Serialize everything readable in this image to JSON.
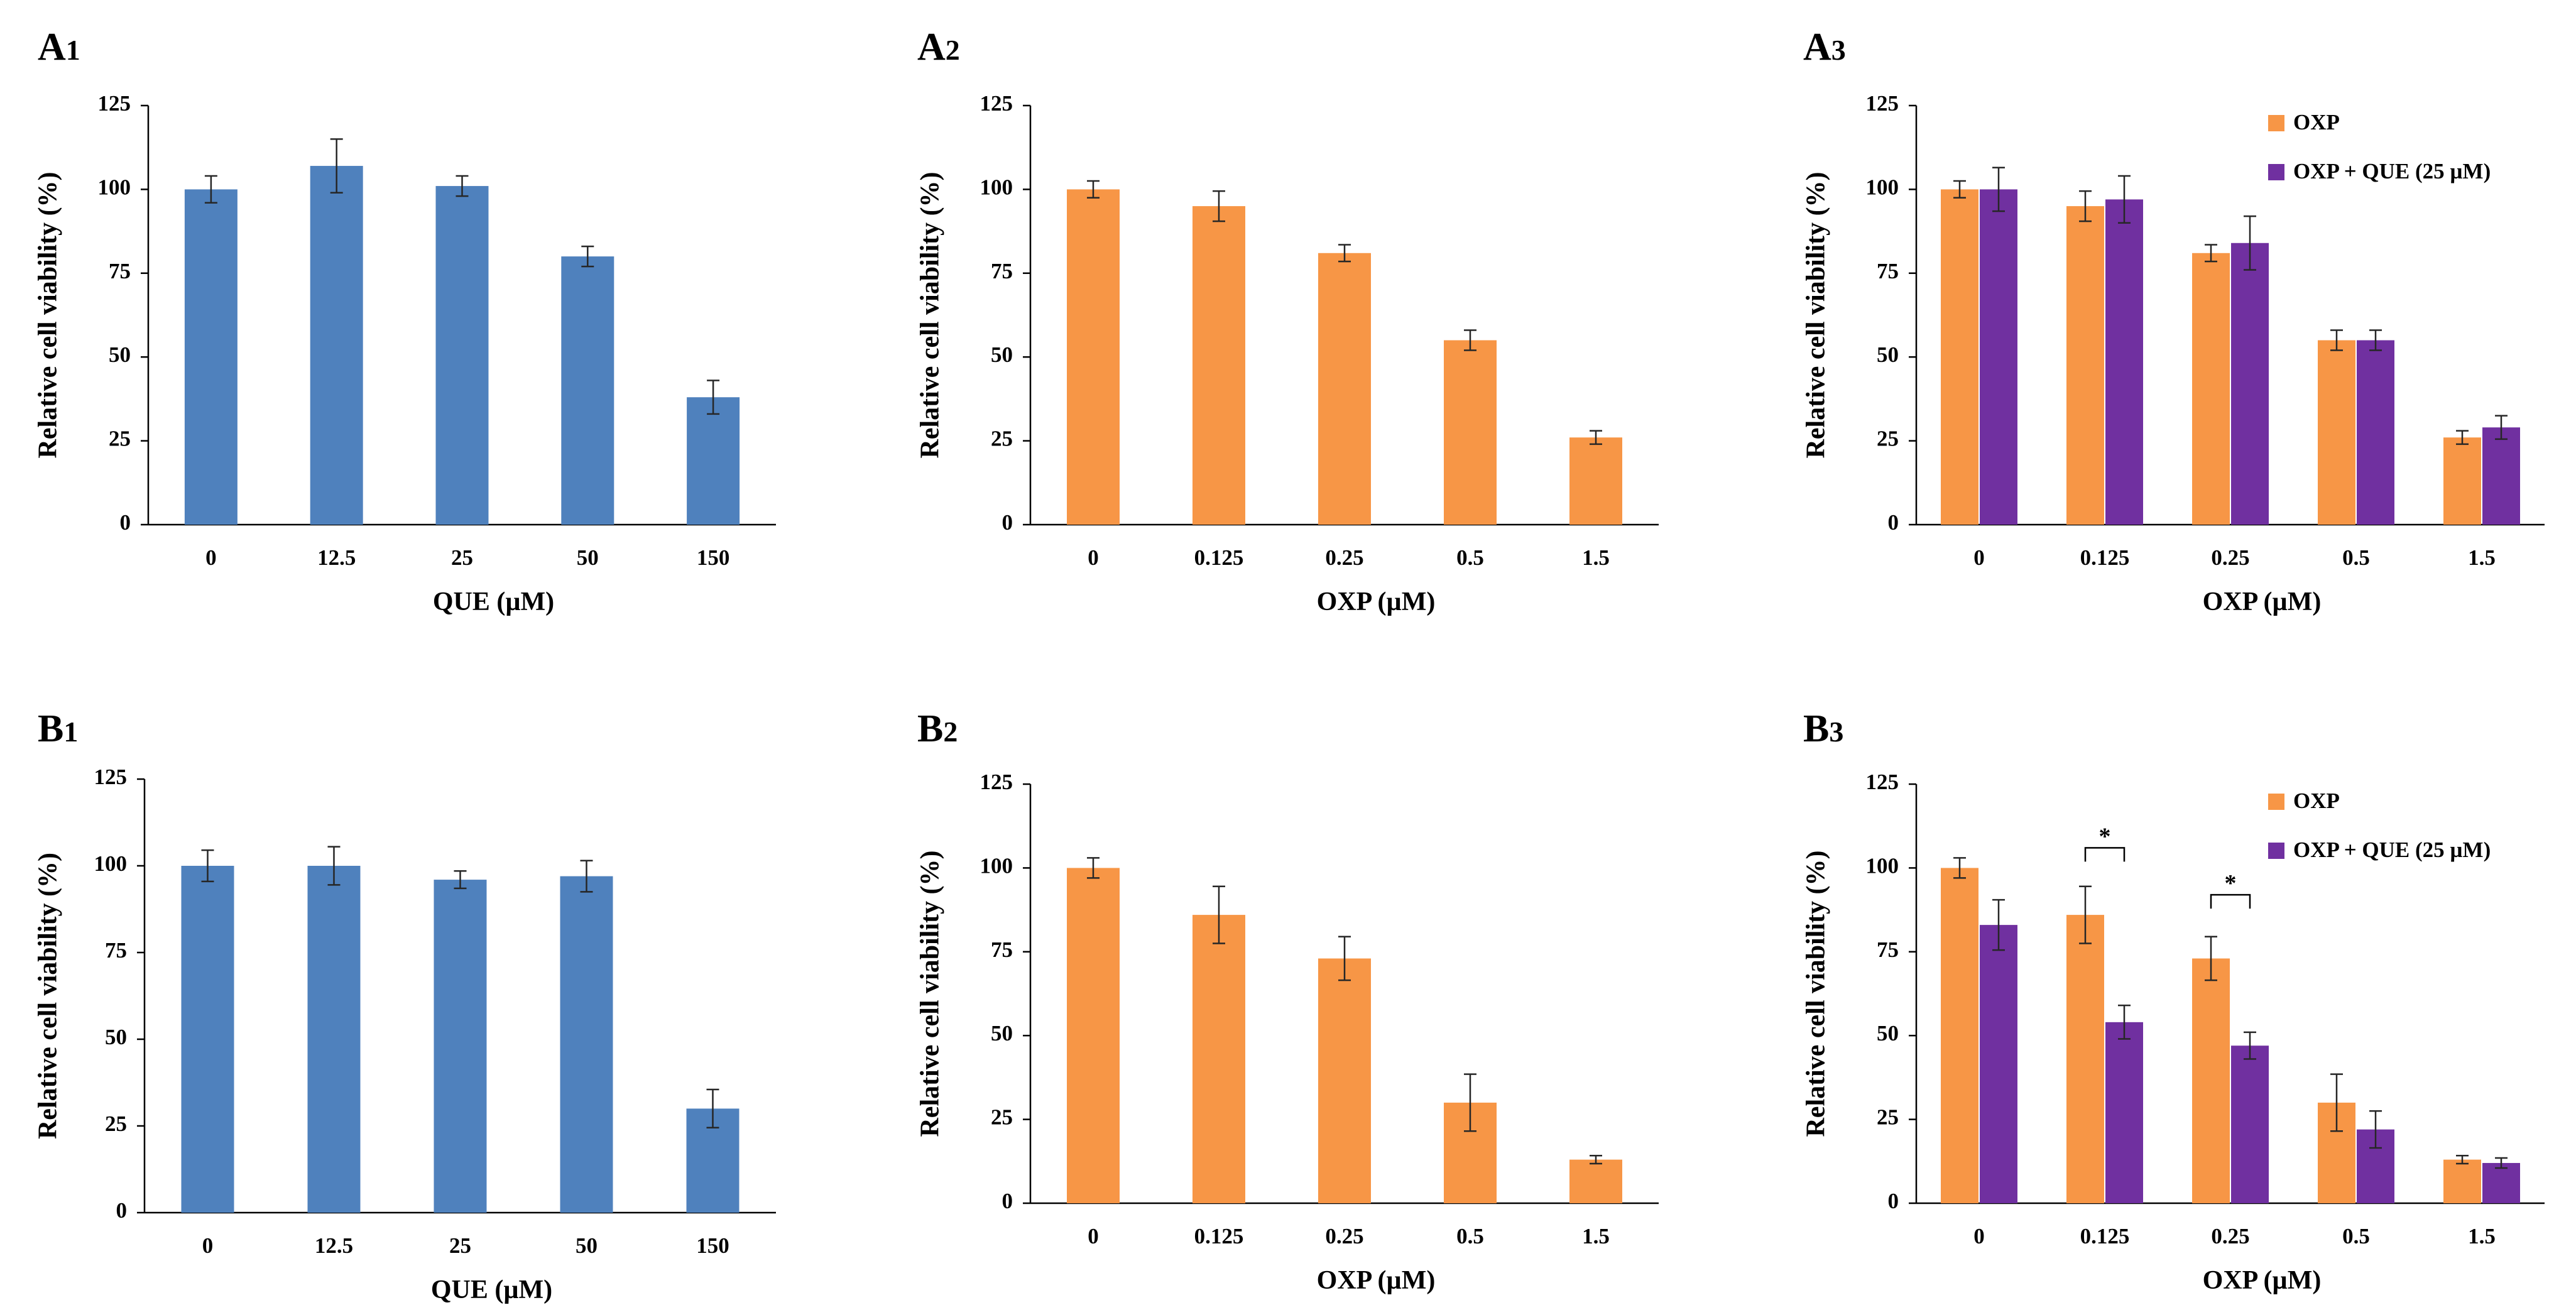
{
  "figure": {
    "panel_count": 6
  },
  "colors": {
    "blue": "#4f81bd",
    "orange": "#f79646",
    "purple": "#7030a0",
    "axis": "#000000",
    "errorbar": "#262626"
  },
  "chart_data": [
    {
      "id": "A1",
      "panel_letter": "A",
      "panel_number": "1",
      "type": "bar",
      "title": "",
      "xlabel": "QUE (µM)",
      "ylabel": "Relative cell viability (%)",
      "ylim": [
        0,
        125
      ],
      "yticks": [
        "0",
        "25",
        "50",
        "75",
        "100",
        "125"
      ],
      "categories": [
        "0",
        "12.5",
        "25",
        "50",
        "150"
      ],
      "series": [
        {
          "name": "QUE",
          "color": "#4f81bd",
          "values": [
            100,
            107,
            101,
            80,
            38
          ],
          "errors": [
            4,
            8,
            3,
            3,
            5
          ]
        }
      ],
      "legend": null,
      "significance": []
    },
    {
      "id": "A2",
      "panel_letter": "A",
      "panel_number": "2",
      "type": "bar",
      "title": "",
      "xlabel": "OXP (µM)",
      "ylabel": "Relative cell viability (%)",
      "ylim": [
        0,
        125
      ],
      "yticks": [
        "0",
        "25",
        "50",
        "75",
        "100",
        "125"
      ],
      "categories": [
        "0",
        "0.125",
        "0.25",
        "0.5",
        "1.5"
      ],
      "series": [
        {
          "name": "OXP",
          "color": "#f79646",
          "values": [
            100,
            95,
            81,
            55,
            26
          ],
          "errors": [
            2.5,
            4.5,
            2.5,
            3,
            2
          ]
        }
      ],
      "legend": null,
      "significance": []
    },
    {
      "id": "A3",
      "panel_letter": "A",
      "panel_number": "3",
      "type": "bar",
      "title": "",
      "xlabel": "OXP (µM)",
      "ylabel": "Relative cell viability (%)",
      "ylim": [
        0,
        125
      ],
      "yticks": [
        "0",
        "25",
        "50",
        "75",
        "100",
        "125"
      ],
      "categories": [
        "0",
        "0.125",
        "0.25",
        "0.5",
        "1.5"
      ],
      "series": [
        {
          "name": "OXP",
          "color": "#f79646",
          "values": [
            100,
            95,
            81,
            55,
            26
          ],
          "errors": [
            2.5,
            4.5,
            2.5,
            3,
            2
          ]
        },
        {
          "name": "OXP + QUE (25 µM)",
          "color": "#7030a0",
          "values": [
            100,
            97,
            84,
            55,
            29
          ],
          "errors": [
            6.5,
            7,
            8,
            3,
            3.5
          ]
        }
      ],
      "legend": [
        "OXP",
        "OXP + QUE (25 µM)"
      ],
      "legend_position": "top-right",
      "significance": []
    },
    {
      "id": "B1",
      "panel_letter": "B",
      "panel_number": "1",
      "type": "bar",
      "title": "",
      "xlabel": "QUE (µM)",
      "ylabel": "Relative cell viability (%)",
      "ylim": [
        0,
        125
      ],
      "yticks": [
        "0",
        "25",
        "50",
        "75",
        "100",
        "125"
      ],
      "categories": [
        "0",
        "12.5",
        "25",
        "50",
        "150"
      ],
      "series": [
        {
          "name": "QUE",
          "color": "#4f81bd",
          "values": [
            100,
            100,
            96,
            97,
            30
          ],
          "errors": [
            4.5,
            5.5,
            2.5,
            4.5,
            5.5
          ]
        }
      ],
      "legend": null,
      "significance": []
    },
    {
      "id": "B2",
      "panel_letter": "B",
      "panel_number": "2",
      "type": "bar",
      "title": "",
      "xlabel": "OXP (µM)",
      "ylabel": "Relative cell viability (%)",
      "ylim": [
        0,
        125
      ],
      "yticks": [
        "0",
        "25",
        "50",
        "75",
        "100",
        "125"
      ],
      "categories": [
        "0",
        "0.125",
        "0.25",
        "0.5",
        "1.5"
      ],
      "series": [
        {
          "name": "OXP",
          "color": "#f79646",
          "values": [
            100,
            86,
            73,
            30,
            13
          ],
          "errors": [
            3,
            8.5,
            6.5,
            8.5,
            1.2
          ]
        }
      ],
      "legend": null,
      "significance": []
    },
    {
      "id": "B3",
      "panel_letter": "B",
      "panel_number": "3",
      "type": "bar",
      "title": "",
      "xlabel": "OXP (µM)",
      "ylabel": "Relative cell viability (%)",
      "ylim": [
        0,
        125
      ],
      "yticks": [
        "0",
        "25",
        "50",
        "75",
        "100",
        "125"
      ],
      "categories": [
        "0",
        "0.125",
        "0.25",
        "0.5",
        "1.5"
      ],
      "series": [
        {
          "name": "OXP",
          "color": "#f79646",
          "values": [
            100,
            86,
            73,
            30,
            13
          ],
          "errors": [
            3,
            8.5,
            6.5,
            8.5,
            1.2
          ]
        },
        {
          "name": "OXP + QUE (25 µM)",
          "color": "#7030a0",
          "values": [
            83,
            54,
            47,
            22,
            12
          ],
          "errors": [
            7.5,
            5,
            4,
            5.5,
            1.5
          ]
        }
      ],
      "legend": [
        "OXP",
        "OXP + QUE (25 µM)"
      ],
      "legend_position": "top-right",
      "significance": [
        {
          "category_index": 1,
          "label": "*",
          "bracket_value": 106
        },
        {
          "category_index": 2,
          "label": "*",
          "bracket_value": 92
        }
      ]
    }
  ]
}
